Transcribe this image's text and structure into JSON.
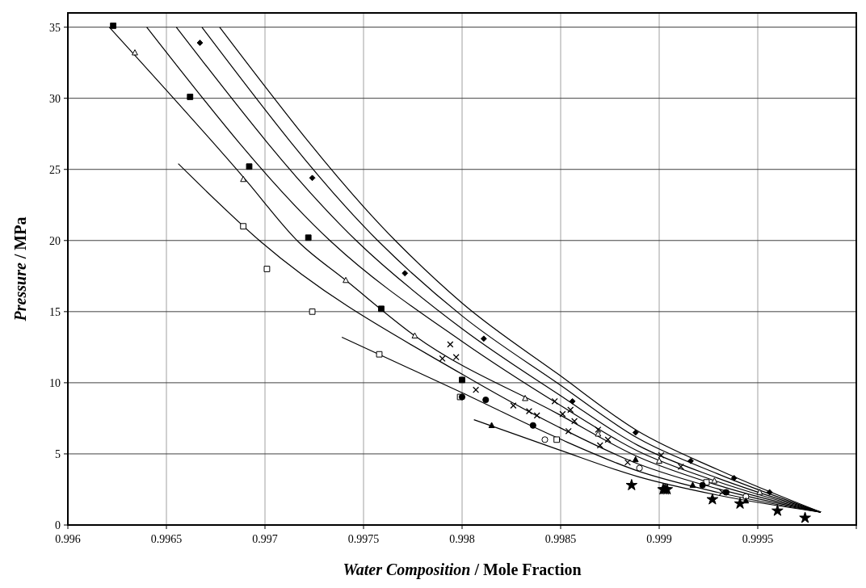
{
  "chart_data": {
    "type": "scatter",
    "xlabel": "Water Composition  / Mole Fraction",
    "ylabel": "Pressure  / MPa",
    "xlim": [
      0.996,
      1.0
    ],
    "xticks": [
      0.996,
      0.9965,
      0.997,
      0.9975,
      0.998,
      0.9985,
      0.999,
      0.9995,
      {
        "value": 1.0,
        "label": null
      }
    ],
    "ylim": [
      0,
      36
    ],
    "yticks": [
      0,
      5,
      10,
      15,
      20,
      25,
      30,
      35
    ],
    "grid": true,
    "series": [
      {
        "type": "line",
        "color": "#000000",
        "x": [
          0.99621,
          0.9969,
          0.99717,
          0.99741,
          0.99776,
          0.998488,
          0.998892,
          0.999296,
          0.99982
        ],
        "values": [
          35,
          24.3,
          19.9,
          17.2,
          13.3,
          7.8,
          4.8,
          2.8,
          0.9
        ]
      },
      {
        "type": "line",
        "color": "#000000",
        "x": [
          0.9964,
          0.997337,
          0.998,
          0.998488,
          0.998892,
          0.999296,
          0.99982
        ],
        "values": [
          35,
          19.9,
          12.9,
          8.5,
          5.2,
          3.05,
          0.9
        ]
      },
      {
        "type": "line",
        "color": "#000000",
        "x": [
          0.99655,
          0.99747,
          0.998,
          0.998488,
          0.998892,
          0.999296,
          0.99982
        ],
        "values": [
          35,
          19.9,
          13.8,
          9.2,
          5.6,
          3.3,
          0.9
        ]
      },
      {
        "type": "line",
        "color": "#000000",
        "x": [
          0.99668,
          0.997579,
          0.998,
          0.998488,
          0.998892,
          0.999296,
          0.99982
        ],
        "values": [
          35,
          19.9,
          14.7,
          9.94,
          6.1,
          3.6,
          0.9
        ]
      },
      {
        "type": "line",
        "color": "#000000",
        "x": [
          0.99677,
          0.997668,
          0.998,
          0.998488,
          0.998892,
          0.999296,
          0.99982
        ],
        "values": [
          35,
          19.9,
          15.6,
          10.6,
          6.6,
          3.9,
          0.9
        ]
      },
      {
        "type": "line",
        "color": "#000000",
        "x": [
          0.99656,
          0.99698,
          0.998,
          0.998488,
          0.998892,
          0.999296,
          0.99982
        ],
        "values": [
          25.4,
          19.9,
          10.6,
          6.9,
          4.3,
          2.55,
          0.9
        ]
      },
      {
        "type": "line",
        "color": "#000000",
        "x": [
          0.99739,
          0.998,
          0.998488,
          0.998892,
          0.999296,
          0.99982
        ],
        "values": [
          13.2,
          9.3,
          6.1,
          3.8,
          2.3,
          0.9
        ]
      },
      {
        "type": "line",
        "color": "#000000",
        "x": [
          0.99806,
          0.998488,
          0.998892,
          0.999296,
          0.99982
        ],
        "values": [
          7.4,
          5.3,
          3.4,
          2.1,
          0.9
        ]
      },
      {
        "marker": "square",
        "color": "#000000",
        "x": [
          0.99623,
          0.99662,
          0.99692,
          0.99722,
          0.99759,
          0.998
        ],
        "values": [
          35.1,
          30.1,
          25.2,
          20.2,
          15.2,
          10.2
        ]
      },
      {
        "marker": "triangle",
        "color": "#ffffff",
        "x": [
          0.99634,
          0.99689,
          0.99741,
          0.99776,
          0.99832,
          0.99869,
          0.999,
          0.99928,
          0.99951
        ],
        "values": [
          33.2,
          24.3,
          17.2,
          13.3,
          8.9,
          6.4,
          4.5,
          3.1,
          2.3
        ]
      },
      {
        "marker": "diamond",
        "color": "#000000",
        "x": [
          0.99667,
          0.99724,
          0.99771,
          0.99811,
          0.99856,
          0.99888,
          0.99916,
          0.99938,
          0.99956
        ],
        "values": [
          33.9,
          24.4,
          17.7,
          13.1,
          8.7,
          6.5,
          4.5,
          3.3,
          2.3
        ]
      },
      {
        "marker": "square",
        "color": "#ffffff",
        "x": [
          0.99689,
          0.99701,
          0.99724,
          0.99758,
          0.99799,
          0.99848,
          0.99924
        ],
        "values": [
          21.0,
          18.0,
          15.0,
          12.0,
          9.0,
          6.0,
          3.0
        ]
      },
      {
        "marker": "circle",
        "color": "#000000",
        "x": [
          0.998,
          0.99812,
          0.99836,
          0.99922,
          0.99934
        ],
        "values": [
          9.0,
          8.8,
          7.0,
          2.8,
          2.3
        ]
      },
      {
        "marker": "circle",
        "color": "#ffffff",
        "x": [
          0.99842,
          0.9989,
          0.99944
        ],
        "values": [
          6.0,
          4.0,
          2.0
        ]
      },
      {
        "marker": "triangle",
        "color": "#000000",
        "x": [
          0.99815,
          0.99888,
          0.99917,
          0.99944
        ],
        "values": [
          7.0,
          4.6,
          2.8,
          1.7
        ]
      },
      {
        "marker": "cross",
        "color": "#000000",
        "x": [
          0.99794,
          0.9979,
          0.99797,
          0.99807,
          0.99826,
          0.99834,
          0.99838,
          0.99847,
          0.99851,
          0.99855,
          0.99857,
          0.99854,
          0.99869,
          0.99874,
          0.9987,
          0.99884,
          0.99901,
          0.99911,
          0.99932
        ],
        "values": [
          12.7,
          11.7,
          11.8,
          9.5,
          8.4,
          8.0,
          7.7,
          8.7,
          7.8,
          8.1,
          7.3,
          6.6,
          6.7,
          6.0,
          5.6,
          4.4,
          4.9,
          4.1,
          2.3
        ]
      },
      {
        "marker": "star",
        "color": "#000000",
        "x": [
          0.99886,
          0.99902,
          0.99903,
          0.99904,
          0.99927,
          0.99941,
          0.9996,
          0.99974
        ],
        "values": [
          2.8,
          2.5,
          2.5,
          2.5,
          1.8,
          1.5,
          1.0,
          0.5
        ]
      }
    ]
  }
}
